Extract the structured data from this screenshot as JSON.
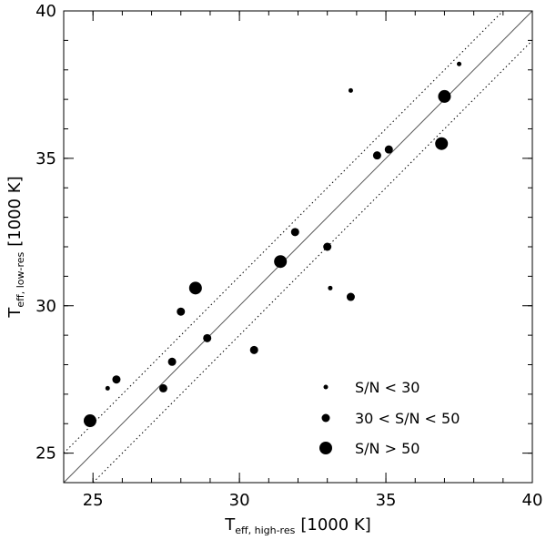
{
  "chart_data": {
    "type": "scatter",
    "x_axis": {
      "main": "T",
      "subscript": "eff, high-res",
      "unit": "[1000 K]",
      "range": [
        24,
        40
      ],
      "ticks": [
        25,
        30,
        35,
        40
      ],
      "minor_step": 1
    },
    "y_axis": {
      "main": "T",
      "subscript": "eff, low-res",
      "unit": "[1000 K]",
      "range": [
        24,
        40
      ],
      "ticks": [
        25,
        30,
        35,
        40
      ],
      "minor_step": 1
    },
    "lines": {
      "identity": {
        "style": "solid",
        "color": "#555555"
      },
      "offset": {
        "value": 1.0,
        "style": "dotted",
        "color": "#000000"
      }
    },
    "legend": {
      "placement": "bottom-right",
      "items": [
        {
          "label": "S/N < 30",
          "size": "small"
        },
        {
          "label": "30 < S/N < 50",
          "size": "medium"
        },
        {
          "label": "S/N > 50",
          "size": "large"
        }
      ]
    },
    "points": [
      {
        "x": 25.5,
        "y": 27.2,
        "size": "small"
      },
      {
        "x": 25.8,
        "y": 27.5,
        "size": "medium"
      },
      {
        "x": 24.9,
        "y": 26.1,
        "size": "large"
      },
      {
        "x": 27.4,
        "y": 27.2,
        "size": "medium"
      },
      {
        "x": 27.7,
        "y": 28.1,
        "size": "medium"
      },
      {
        "x": 28.0,
        "y": 29.8,
        "size": "medium"
      },
      {
        "x": 28.5,
        "y": 30.6,
        "size": "large"
      },
      {
        "x": 28.9,
        "y": 28.9,
        "size": "medium"
      },
      {
        "x": 30.5,
        "y": 28.5,
        "size": "medium"
      },
      {
        "x": 31.4,
        "y": 31.5,
        "size": "large"
      },
      {
        "x": 31.9,
        "y": 32.5,
        "size": "medium"
      },
      {
        "x": 33.0,
        "y": 32.0,
        "size": "medium"
      },
      {
        "x": 33.1,
        "y": 30.6,
        "size": "small"
      },
      {
        "x": 33.8,
        "y": 30.3,
        "size": "medium"
      },
      {
        "x": 33.8,
        "y": 37.3,
        "size": "small"
      },
      {
        "x": 34.7,
        "y": 35.1,
        "size": "medium"
      },
      {
        "x": 35.1,
        "y": 35.3,
        "size": "medium"
      },
      {
        "x": 36.9,
        "y": 35.5,
        "size": "large"
      },
      {
        "x": 37.0,
        "y": 37.1,
        "size": "large"
      },
      {
        "x": 37.5,
        "y": 38.2,
        "size": "small"
      }
    ]
  }
}
